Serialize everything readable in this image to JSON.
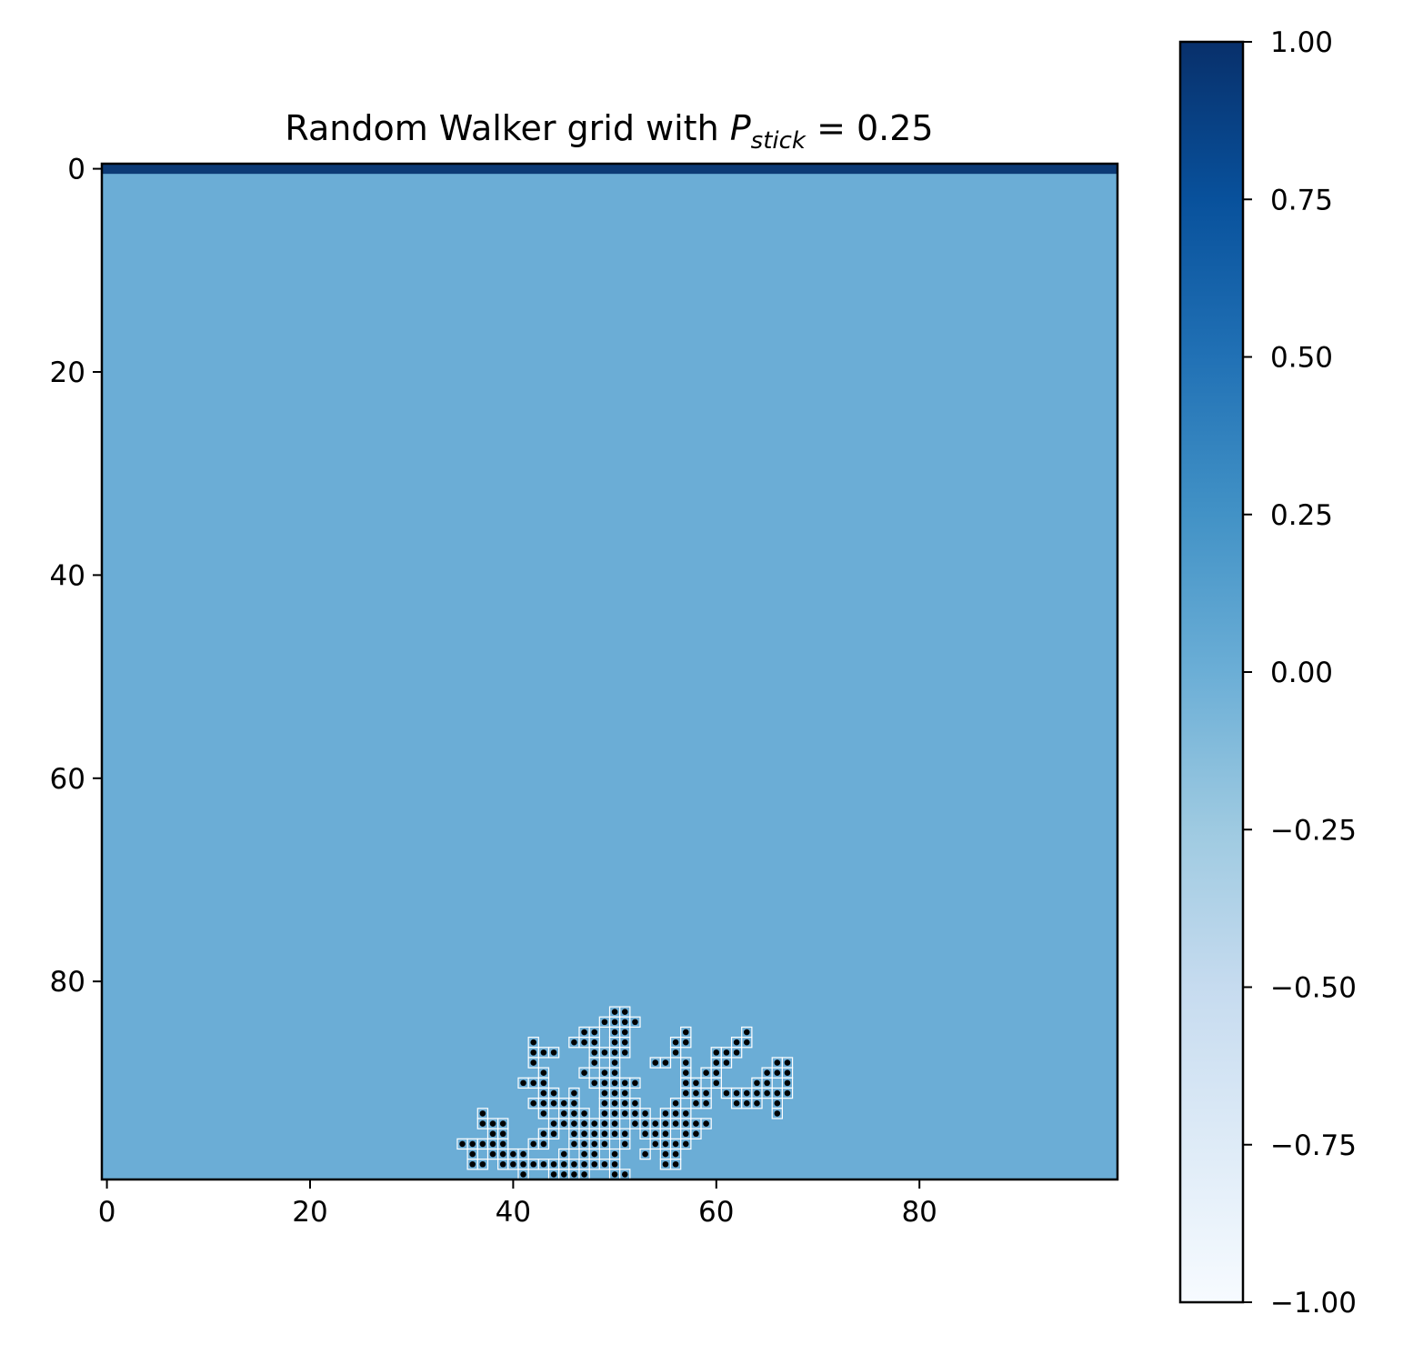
{
  "chart_data": {
    "type": "heatmap",
    "title": {
      "prefix": "Random Walker grid with ",
      "symbol": "P",
      "subscript": "stick",
      "suffix": " = 0.25"
    },
    "grid_size": [
      100,
      100
    ],
    "background_value": 0.0,
    "source_row": {
      "row": 0,
      "value": 1.0
    },
    "cluster_value": 0.0,
    "cluster_marker": "black dot",
    "cluster_cells": [
      [
        83,
        50
      ],
      [
        83,
        51
      ],
      [
        84,
        49
      ],
      [
        84,
        50
      ],
      [
        84,
        51
      ],
      [
        84,
        52
      ],
      [
        85,
        47
      ],
      [
        85,
        48
      ],
      [
        85,
        50
      ],
      [
        85,
        51
      ],
      [
        85,
        57
      ],
      [
        85,
        63
      ],
      [
        86,
        42
      ],
      [
        86,
        46
      ],
      [
        86,
        47
      ],
      [
        86,
        48
      ],
      [
        86,
        50
      ],
      [
        86,
        51
      ],
      [
        86,
        56
      ],
      [
        86,
        57
      ],
      [
        86,
        62
      ],
      [
        86,
        63
      ],
      [
        87,
        42
      ],
      [
        87,
        43
      ],
      [
        87,
        44
      ],
      [
        87,
        48
      ],
      [
        87,
        49
      ],
      [
        87,
        50
      ],
      [
        87,
        51
      ],
      [
        87,
        56
      ],
      [
        87,
        60
      ],
      [
        87,
        61
      ],
      [
        87,
        62
      ],
      [
        88,
        42
      ],
      [
        88,
        48
      ],
      [
        88,
        50
      ],
      [
        88,
        54
      ],
      [
        88,
        55
      ],
      [
        88,
        57
      ],
      [
        88,
        60
      ],
      [
        88,
        61
      ],
      [
        88,
        66
      ],
      [
        88,
        67
      ],
      [
        89,
        43
      ],
      [
        89,
        47
      ],
      [
        89,
        49
      ],
      [
        89,
        50
      ],
      [
        89,
        57
      ],
      [
        89,
        59
      ],
      [
        89,
        60
      ],
      [
        89,
        65
      ],
      [
        89,
        66
      ],
      [
        89,
        67
      ],
      [
        90,
        41
      ],
      [
        90,
        42
      ],
      [
        90,
        43
      ],
      [
        90,
        48
      ],
      [
        90,
        49
      ],
      [
        90,
        50
      ],
      [
        90,
        51
      ],
      [
        90,
        52
      ],
      [
        90,
        57
      ],
      [
        90,
        58
      ],
      [
        90,
        60
      ],
      [
        90,
        64
      ],
      [
        90,
        65
      ],
      [
        90,
        67
      ],
      [
        91,
        43
      ],
      [
        91,
        44
      ],
      [
        91,
        46
      ],
      [
        91,
        49
      ],
      [
        91,
        50
      ],
      [
        91,
        51
      ],
      [
        91,
        57
      ],
      [
        91,
        58
      ],
      [
        91,
        59
      ],
      [
        91,
        61
      ],
      [
        91,
        62
      ],
      [
        91,
        63
      ],
      [
        91,
        64
      ],
      [
        91,
        65
      ],
      [
        91,
        66
      ],
      [
        91,
        67
      ],
      [
        92,
        42
      ],
      [
        92,
        43
      ],
      [
        92,
        44
      ],
      [
        92,
        45
      ],
      [
        92,
        46
      ],
      [
        92,
        49
      ],
      [
        92,
        50
      ],
      [
        92,
        51
      ],
      [
        92,
        52
      ],
      [
        92,
        56
      ],
      [
        92,
        58
      ],
      [
        92,
        59
      ],
      [
        92,
        62
      ],
      [
        92,
        63
      ],
      [
        92,
        64
      ],
      [
        92,
        66
      ],
      [
        93,
        37
      ],
      [
        93,
        43
      ],
      [
        93,
        45
      ],
      [
        93,
        46
      ],
      [
        93,
        47
      ],
      [
        93,
        49
      ],
      [
        93,
        50
      ],
      [
        93,
        51
      ],
      [
        93,
        52
      ],
      [
        93,
        53
      ],
      [
        93,
        55
      ],
      [
        93,
        56
      ],
      [
        93,
        57
      ],
      [
        93,
        66
      ],
      [
        94,
        37
      ],
      [
        94,
        38
      ],
      [
        94,
        39
      ],
      [
        94,
        44
      ],
      [
        94,
        45
      ],
      [
        94,
        46
      ],
      [
        94,
        47
      ],
      [
        94,
        48
      ],
      [
        94,
        49
      ],
      [
        94,
        50
      ],
      [
        94,
        52
      ],
      [
        94,
        53
      ],
      [
        94,
        54
      ],
      [
        94,
        55
      ],
      [
        94,
        56
      ],
      [
        94,
        57
      ],
      [
        94,
        58
      ],
      [
        94,
        59
      ],
      [
        95,
        38
      ],
      [
        95,
        39
      ],
      [
        95,
        43
      ],
      [
        95,
        44
      ],
      [
        95,
        46
      ],
      [
        95,
        47
      ],
      [
        95,
        48
      ],
      [
        95,
        49
      ],
      [
        95,
        50
      ],
      [
        95,
        51
      ],
      [
        95,
        53
      ],
      [
        95,
        54
      ],
      [
        95,
        55
      ],
      [
        95,
        57
      ],
      [
        95,
        58
      ],
      [
        96,
        35
      ],
      [
        96,
        36
      ],
      [
        96,
        37
      ],
      [
        96,
        38
      ],
      [
        96,
        39
      ],
      [
        96,
        42
      ],
      [
        96,
        43
      ],
      [
        96,
        46
      ],
      [
        96,
        47
      ],
      [
        96,
        48
      ],
      [
        96,
        49
      ],
      [
        96,
        51
      ],
      [
        96,
        54
      ],
      [
        96,
        55
      ],
      [
        96,
        56
      ],
      [
        96,
        57
      ],
      [
        97,
        36
      ],
      [
        97,
        38
      ],
      [
        97,
        39
      ],
      [
        97,
        40
      ],
      [
        97,
        41
      ],
      [
        97,
        45
      ],
      [
        97,
        47
      ],
      [
        97,
        48
      ],
      [
        97,
        50
      ],
      [
        97,
        53
      ],
      [
        97,
        55
      ],
      [
        97,
        56
      ],
      [
        98,
        36
      ],
      [
        98,
        37
      ],
      [
        98,
        39
      ],
      [
        98,
        40
      ],
      [
        98,
        41
      ],
      [
        98,
        42
      ],
      [
        98,
        43
      ],
      [
        98,
        44
      ],
      [
        98,
        45
      ],
      [
        98,
        46
      ],
      [
        98,
        47
      ],
      [
        98,
        48
      ],
      [
        98,
        49
      ],
      [
        98,
        50
      ],
      [
        98,
        55
      ],
      [
        98,
        56
      ],
      [
        99,
        41
      ],
      [
        99,
        44
      ],
      [
        99,
        45
      ],
      [
        99,
        46
      ],
      [
        99,
        47
      ],
      [
        99,
        50
      ],
      [
        99,
        51
      ]
    ],
    "x_ticks": [
      "0",
      "20",
      "40",
      "60",
      "80"
    ],
    "y_ticks": [
      "0",
      "20",
      "40",
      "60",
      "80"
    ],
    "x_tick_values": [
      0,
      20,
      40,
      60,
      80
    ],
    "y_tick_values": [
      0,
      20,
      40,
      60,
      80
    ],
    "colormap": "Blues",
    "colorbar": {
      "range": [
        -1.0,
        1.0
      ],
      "ticks": [
        "1.00",
        "0.75",
        "0.50",
        "0.25",
        "0.00",
        "−0.25",
        "−0.50",
        "−0.75",
        "−1.00"
      ],
      "tick_values": [
        1.0,
        0.75,
        0.5,
        0.25,
        0.0,
        -0.25,
        -0.5,
        -0.75,
        -1.0
      ]
    },
    "colors": {
      "background": "#6badd6",
      "source": "#0c3a75",
      "cluster_dot": "#000000",
      "cluster_cell": "#6badd6"
    }
  }
}
